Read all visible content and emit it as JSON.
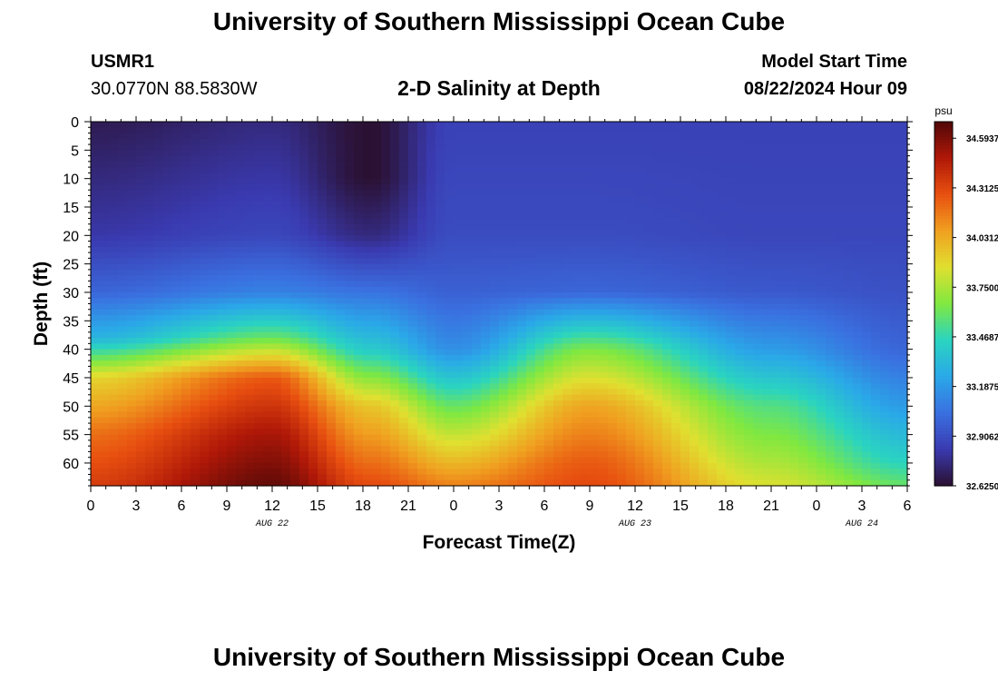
{
  "header": {
    "title": "University of Southern Mississippi Ocean Cube",
    "station_id": "USMR1",
    "coordinates": "30.0770N  88.5830W",
    "plot_title": "2-D Salinity at Depth",
    "model_start_label": "Model Start Time",
    "model_start_value": "08/22/2024 Hour 09"
  },
  "footer": {
    "title": "University of Southern Mississippi Ocean Cube"
  },
  "chart_data": {
    "type": "heatmap",
    "title": "2-D Salinity at Depth",
    "xlabel": "Forecast Time(Z)",
    "ylabel": "Depth (ft)",
    "x_tick_labels": [
      "0",
      "3",
      "6",
      "9",
      "12",
      "15",
      "18",
      "21",
      "0",
      "3",
      "6",
      "9",
      "12",
      "15",
      "18",
      "21",
      "0",
      "3",
      "6"
    ],
    "x_range_hours": [
      0,
      54
    ],
    "date_labels": [
      {
        "label": "AUG 22",
        "hour": 12
      },
      {
        "label": "AUG 23",
        "hour": 36
      },
      {
        "label": "AUG 24",
        "hour": 51
      }
    ],
    "y_ticks": [
      0,
      5,
      10,
      15,
      20,
      25,
      30,
      35,
      40,
      45,
      50,
      55,
      60
    ],
    "y_range": [
      0,
      64
    ],
    "y_inverted": true,
    "colorbar": {
      "unit": "psu",
      "ticks": [
        "34.5937",
        "34.3125",
        "34.0312",
        "33.7500",
        "33.4687",
        "33.1875",
        "32.9062",
        "32.6250"
      ],
      "range": [
        32.625,
        34.6875
      ],
      "colors": [
        "#2a1030",
        "#3a3ab0",
        "#3a70e0",
        "#2aa8e8",
        "#2ad4c0",
        "#80e840",
        "#e0e030",
        "#f0a020",
        "#e85010",
        "#b01808",
        "#500808"
      ]
    },
    "grid": false,
    "legend": "right colorbar",
    "field_description_points": [
      {
        "hour": 0,
        "depths": [
          0,
          20,
          30,
          38,
          45,
          55,
          64
        ],
        "psu": [
          32.68,
          32.82,
          33.0,
          33.3,
          33.9,
          34.2,
          34.35
        ]
      },
      {
        "hour": 12,
        "depths": [
          0,
          20,
          30,
          38,
          45,
          55,
          64
        ],
        "psu": [
          32.75,
          32.88,
          33.1,
          33.6,
          34.25,
          34.5,
          34.65
        ]
      },
      {
        "hour": 18.5,
        "depths": [
          0,
          10,
          20,
          30,
          40,
          50,
          64
        ],
        "psu": [
          32.63,
          32.63,
          32.75,
          33.05,
          33.4,
          33.95,
          34.3
        ]
      },
      {
        "hour": 24,
        "depths": [
          0,
          20,
          30,
          40,
          50,
          60,
          64
        ],
        "psu": [
          32.86,
          32.9,
          32.98,
          33.15,
          33.6,
          34.0,
          34.15
        ]
      },
      {
        "hour": 33,
        "depths": [
          0,
          20,
          30,
          40,
          50,
          60,
          64
        ],
        "psu": [
          32.86,
          32.9,
          33.0,
          33.65,
          34.05,
          34.25,
          34.3
        ]
      },
      {
        "hour": 45,
        "depths": [
          0,
          20,
          30,
          40,
          50,
          60,
          64
        ],
        "psu": [
          32.86,
          32.88,
          32.95,
          33.2,
          33.55,
          33.75,
          33.85
        ]
      },
      {
        "hour": 54,
        "depths": [
          0,
          20,
          30,
          40,
          50,
          60,
          64
        ],
        "psu": [
          32.86,
          32.88,
          32.92,
          33.0,
          33.2,
          33.45,
          33.6
        ]
      }
    ]
  }
}
